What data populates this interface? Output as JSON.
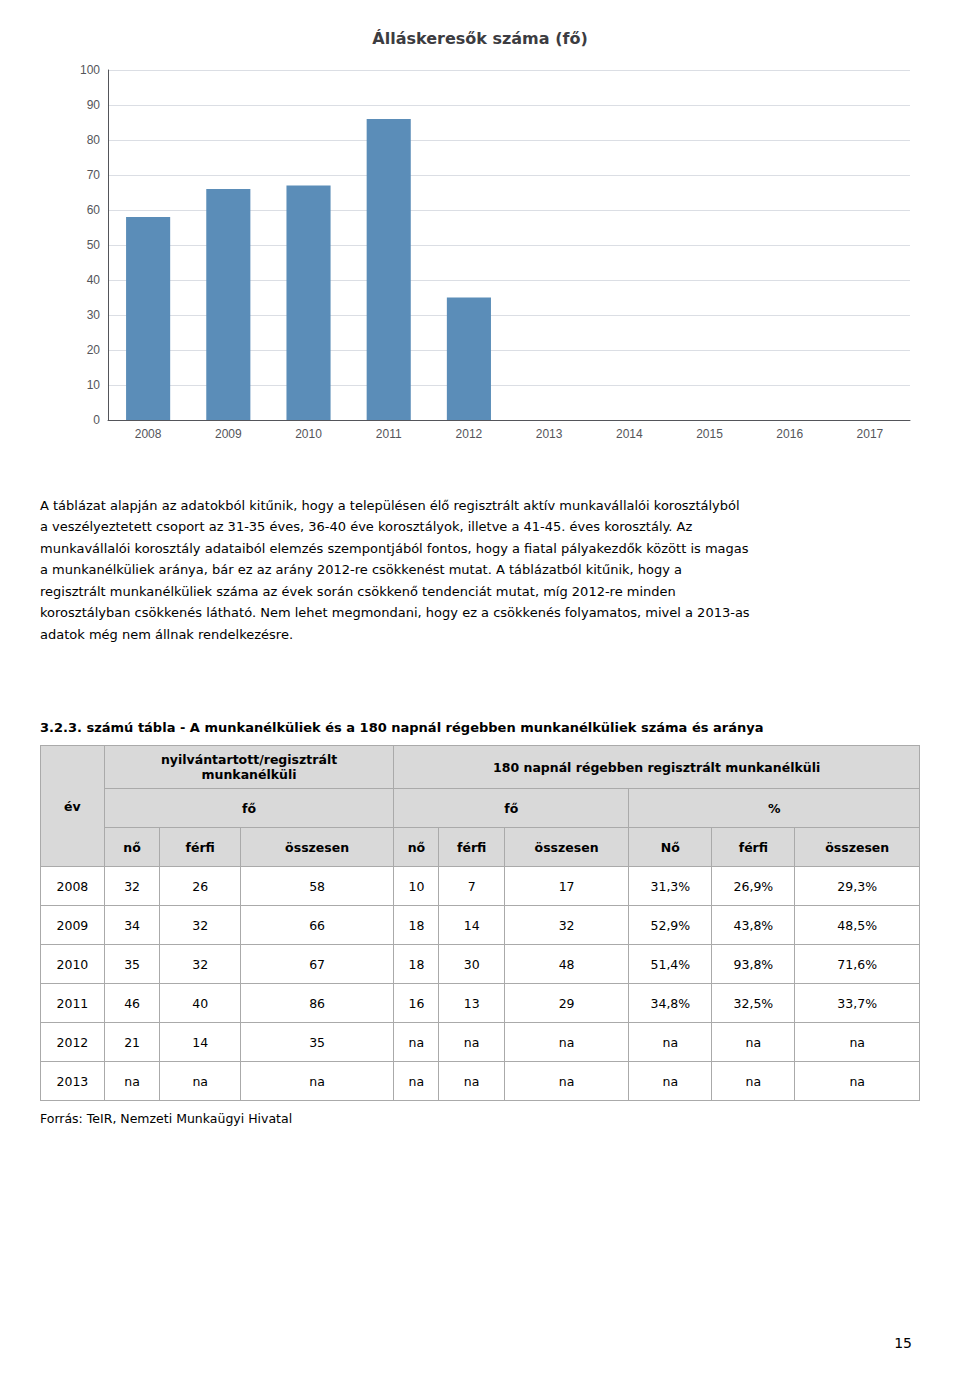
{
  "chart_data": {
    "type": "bar",
    "title": "Álláskeresők száma (fő)",
    "categories": [
      "2008",
      "2009",
      "2010",
      "2011",
      "2012",
      "2013",
      "2014",
      "2015",
      "2016",
      "2017"
    ],
    "values": [
      58,
      66,
      67,
      86,
      35,
      0,
      0,
      0,
      0,
      0
    ],
    "color": "#5B8DB8",
    "ylim": [
      0,
      100
    ],
    "yticks": [
      0,
      10,
      20,
      30,
      40,
      50,
      60,
      70,
      80,
      90,
      100
    ],
    "grid": true
  },
  "paragraph": [
    "A táblázat alapján az adatokból kitűnik, hogy a településen élő regisztrált aktív munkavállalói korosztályból",
    "a veszélyeztetett csoport az 31-35 éves, 36-40 éve korosztályok, illetve a 41-45. éves korosztály.  Az",
    "munkavállalói korosztály adataiból elemzés szempontjából fontos, hogy a fiatal pályakezdők között is magas",
    "a munkanélküliek aránya, bár ez az arány 2012-re csökkenést mutat.  A táblázatból kitűnik, hogy a",
    "regisztrált munkanélküliek száma az évek során csökkenő tendenciát mutat, míg 2012-re minden",
    "korosztályban csökkenés látható. Nem lehet megmondani, hogy ez a csökkenés folyamatos, mivel a 2013-as",
    "adatok még nem állnak rendelkezésre."
  ],
  "table": {
    "title": "3.2.3. számú tábla - A munkanélküliek és a 180 napnál régebben munkanélküliek száma és aránya",
    "header": [
      [
        {
          "text": "év",
          "rowspan": 3
        },
        {
          "text": "nyilvántartott/regisztrált\nmunkanélküli",
          "colspan": 3
        },
        {
          "text": "180 napnál régebben regisztrált munkanélküli",
          "colspan": 6
        }
      ],
      [
        {
          "text": "fő",
          "colspan": 3
        },
        {
          "text": "fő",
          "colspan": 3
        },
        {
          "text": "%",
          "colspan": 3
        }
      ],
      [
        {
          "text": "nő"
        },
        {
          "text": "férfi"
        },
        {
          "text": "összesen"
        },
        {
          "text": "nő"
        },
        {
          "text": "férfi"
        },
        {
          "text": "összesen"
        },
        {
          "text": "Nő"
        },
        {
          "text": "férfi"
        },
        {
          "text": "összesen"
        }
      ]
    ],
    "rows": [
      [
        "2008",
        "32",
        "26",
        "58",
        "10",
        "7",
        "17",
        "31,3%",
        "26,9%",
        "29,3%"
      ],
      [
        "2009",
        "34",
        "32",
        "66",
        "18",
        "14",
        "32",
        "52,9%",
        "43,8%",
        "48,5%"
      ],
      [
        "2010",
        "35",
        "32",
        "67",
        "18",
        "30",
        "48",
        "51,4%",
        "93,8%",
        "71,6%"
      ],
      [
        "2011",
        "46",
        "40",
        "86",
        "16",
        "13",
        "29",
        "34,8%",
        "32,5%",
        "33,7%"
      ],
      [
        "2012",
        "21",
        "14",
        "35",
        "na",
        "na",
        "na",
        "na",
        "na",
        "na"
      ],
      [
        "2013",
        "na",
        "na",
        "na",
        "na",
        "na",
        "na",
        "na",
        "na",
        "na"
      ]
    ],
    "source": "Forrás: TeIR, Nemzeti Munkaügyi Hivatal",
    "header_color": "#D9D9D9",
    "border_color": "#AAAAAA"
  },
  "page_number": "15"
}
